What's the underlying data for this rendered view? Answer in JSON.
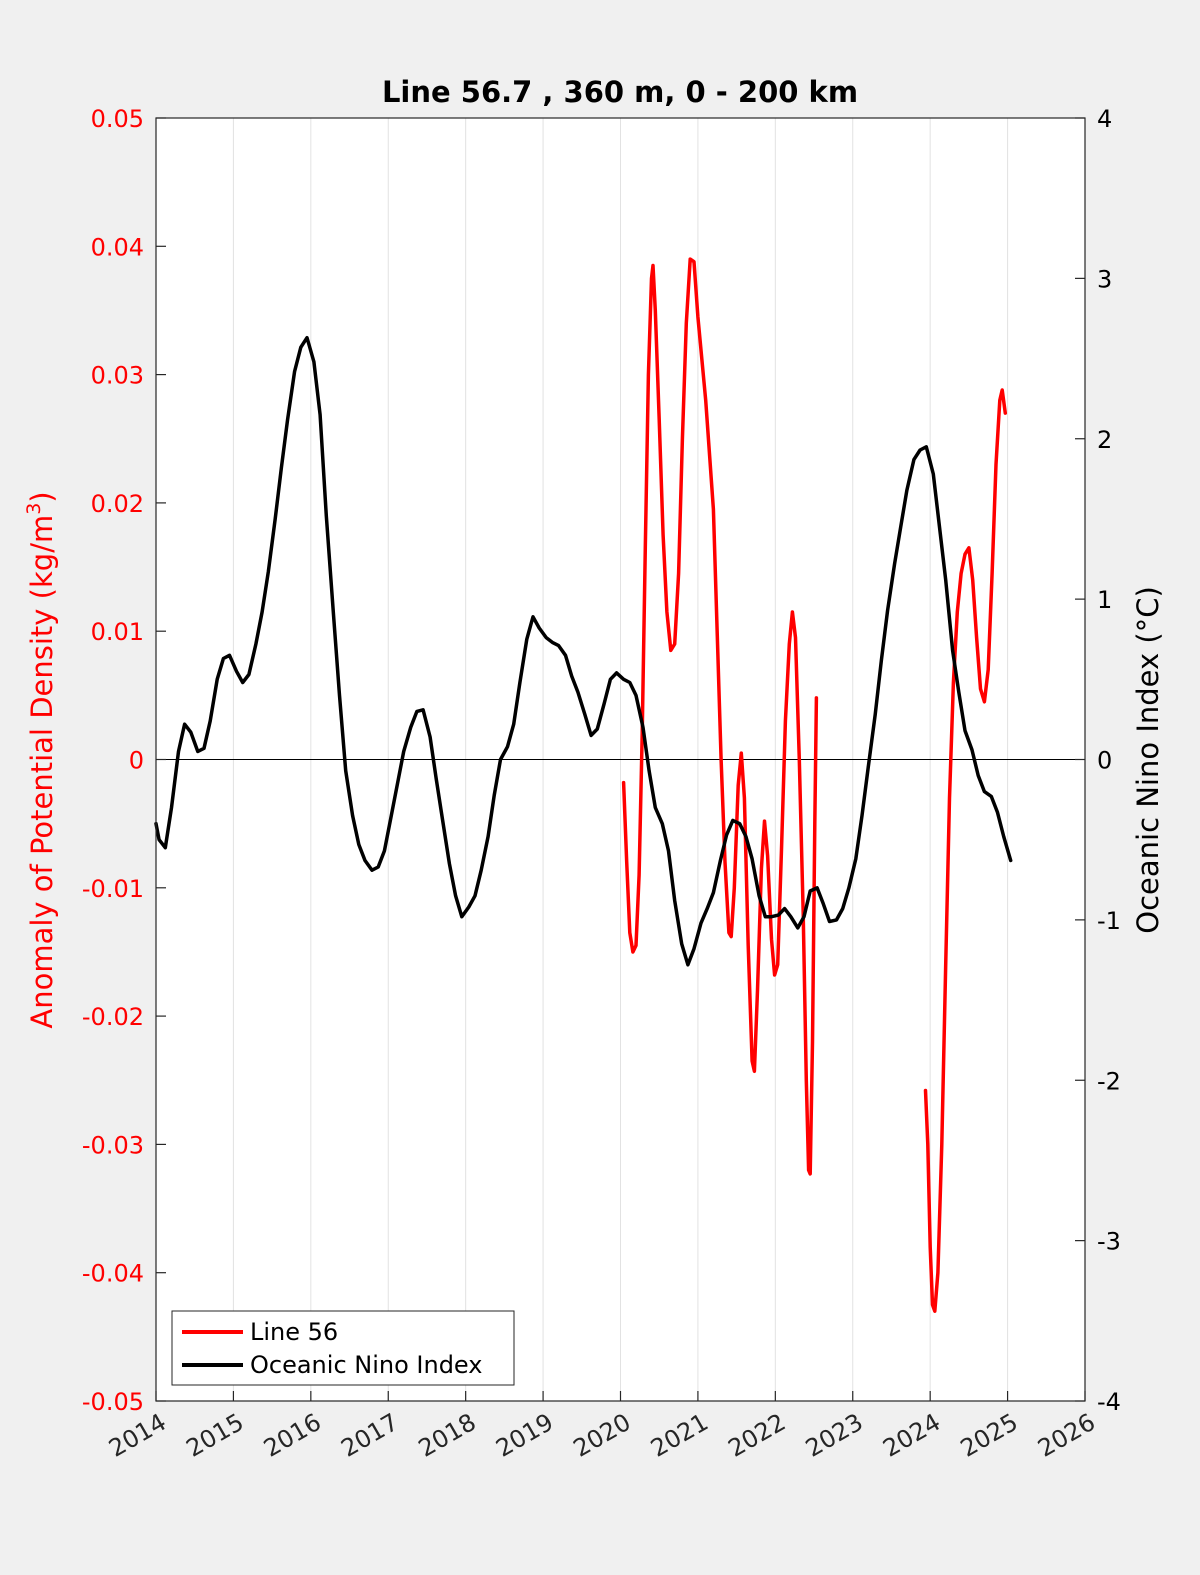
{
  "chart_data": {
    "type": "line",
    "title": "Line 56.7 , 360 m, 0 - 200 km",
    "ylabel_left": "Anomaly of Potential Density (kg/m",
    "ylabel_left_sup": "3",
    "ylabel_left_close": ")",
    "ylabel_right": "Oceanic Nino Index (°C)",
    "xlim": [
      2014,
      2026
    ],
    "ylim_left": [
      -0.05,
      0.05
    ],
    "ylim_right": [
      -4,
      4
    ],
    "x_ticks": [
      "2014",
      "2015",
      "2016",
      "2017",
      "2018",
      "2019",
      "2020",
      "2021",
      "2022",
      "2023",
      "2024",
      "2025",
      "2026"
    ],
    "y_left_ticks": [
      "0.05",
      "0.04",
      "0.03",
      "0.02",
      "0.01",
      "0",
      "-0.01",
      "-0.02",
      "-0.03",
      "-0.04",
      "-0.05"
    ],
    "y_right_ticks": [
      "4",
      "3",
      "2",
      "1",
      "0",
      "-1",
      "-2",
      "-3",
      "-4"
    ],
    "grid": "vertical",
    "zero_line": true,
    "legend_position": "bottom-left",
    "colors": {
      "left_axis": "#ff0000",
      "line56": "#ff0000",
      "oni": "#000000"
    },
    "series": [
      {
        "name": "Line 56",
        "axis": "left",
        "segments": [
          [
            [
              2020.04,
              -0.0018
            ],
            [
              2020.08,
              -0.008
            ],
            [
              2020.12,
              -0.0135
            ],
            [
              2020.16,
              -0.015
            ],
            [
              2020.2,
              -0.0145
            ],
            [
              2020.24,
              -0.009
            ],
            [
              2020.28,
              0.002
            ],
            [
              2020.32,
              0.0165
            ],
            [
              2020.36,
              0.03
            ],
            [
              2020.4,
              0.0375
            ],
            [
              2020.42,
              0.0385
            ],
            [
              2020.45,
              0.035
            ],
            [
              2020.5,
              0.0265
            ],
            [
              2020.55,
              0.0175
            ],
            [
              2020.6,
              0.0115
            ],
            [
              2020.65,
              0.0085
            ],
            [
              2020.7,
              0.009
            ],
            [
              2020.75,
              0.0145
            ],
            [
              2020.8,
              0.025
            ],
            [
              2020.85,
              0.034
            ],
            [
              2020.9,
              0.039
            ],
            [
              2020.95,
              0.0388
            ],
            [
              2021.0,
              0.0345
            ],
            [
              2021.1,
              0.028
            ],
            [
              2021.2,
              0.0195
            ],
            [
              2021.3,
              0.0
            ],
            [
              2021.35,
              -0.008
            ],
            [
              2021.4,
              -0.0135
            ],
            [
              2021.43,
              -0.0138
            ],
            [
              2021.47,
              -0.01
            ],
            [
              2021.52,
              -0.002
            ],
            [
              2021.56,
              0.0005
            ],
            [
              2021.6,
              -0.003
            ],
            [
              2021.65,
              -0.0145
            ],
            [
              2021.7,
              -0.0235
            ],
            [
              2021.73,
              -0.0243
            ],
            [
              2021.77,
              -0.018
            ],
            [
              2021.82,
              -0.0085
            ],
            [
              2021.86,
              -0.0048
            ],
            [
              2021.9,
              -0.0075
            ],
            [
              2021.95,
              -0.014
            ],
            [
              2021.99,
              -0.0168
            ],
            [
              2022.03,
              -0.016
            ],
            [
              2022.08,
              -0.007
            ],
            [
              2022.13,
              0.003
            ],
            [
              2022.18,
              0.009
            ],
            [
              2022.22,
              0.0115
            ],
            [
              2022.26,
              0.0095
            ],
            [
              2022.31,
              0.0
            ],
            [
              2022.36,
              -0.012
            ],
            [
              2022.4,
              -0.025
            ],
            [
              2022.43,
              -0.032
            ],
            [
              2022.45,
              -0.0323
            ],
            [
              2022.48,
              -0.022
            ],
            [
              2022.51,
              -0.005
            ],
            [
              2022.53,
              0.0048
            ]
          ],
          [
            [
              2023.94,
              -0.0258
            ],
            [
              2023.97,
              -0.03
            ],
            [
              2024.0,
              -0.038
            ],
            [
              2024.03,
              -0.0425
            ],
            [
              2024.06,
              -0.043
            ],
            [
              2024.1,
              -0.04
            ],
            [
              2024.15,
              -0.03
            ],
            [
              2024.2,
              -0.016
            ],
            [
              2024.25,
              -0.003
            ],
            [
              2024.3,
              0.006
            ],
            [
              2024.35,
              0.0115
            ],
            [
              2024.4,
              0.0145
            ],
            [
              2024.45,
              0.016
            ],
            [
              2024.5,
              0.0165
            ],
            [
              2024.55,
              0.014
            ],
            [
              2024.6,
              0.0095
            ],
            [
              2024.65,
              0.0055
            ],
            [
              2024.7,
              0.0045
            ],
            [
              2024.75,
              0.007
            ],
            [
              2024.8,
              0.0145
            ],
            [
              2024.85,
              0.023
            ],
            [
              2024.9,
              0.028
            ],
            [
              2024.93,
              0.0288
            ],
            [
              2024.97,
              0.027
            ]
          ]
        ]
      },
      {
        "name": "Oceanic Nino Index",
        "axis": "right",
        "points": [
          [
            2014.0,
            -0.4
          ],
          [
            2014.04,
            -0.5
          ],
          [
            2014.12,
            -0.55
          ],
          [
            2014.2,
            -0.3
          ],
          [
            2014.29,
            0.05
          ],
          [
            2014.37,
            0.22
          ],
          [
            2014.45,
            0.17
          ],
          [
            2014.54,
            0.05
          ],
          [
            2014.62,
            0.07
          ],
          [
            2014.7,
            0.24
          ],
          [
            2014.79,
            0.5
          ],
          [
            2014.87,
            0.63
          ],
          [
            2014.95,
            0.65
          ],
          [
            2015.04,
            0.55
          ],
          [
            2015.12,
            0.48
          ],
          [
            2015.2,
            0.53
          ],
          [
            2015.29,
            0.72
          ],
          [
            2015.37,
            0.92
          ],
          [
            2015.45,
            1.17
          ],
          [
            2015.54,
            1.5
          ],
          [
            2015.62,
            1.82
          ],
          [
            2015.7,
            2.12
          ],
          [
            2015.79,
            2.42
          ],
          [
            2015.87,
            2.57
          ],
          [
            2015.95,
            2.63
          ],
          [
            2016.04,
            2.48
          ],
          [
            2016.12,
            2.15
          ],
          [
            2016.2,
            1.52
          ],
          [
            2016.29,
            0.92
          ],
          [
            2016.37,
            0.4
          ],
          [
            2016.45,
            -0.07
          ],
          [
            2016.54,
            -0.35
          ],
          [
            2016.62,
            -0.53
          ],
          [
            2016.7,
            -0.63
          ],
          [
            2016.79,
            -0.69
          ],
          [
            2016.87,
            -0.67
          ],
          [
            2016.95,
            -0.57
          ],
          [
            2017.04,
            -0.35
          ],
          [
            2017.12,
            -0.15
          ],
          [
            2017.2,
            0.05
          ],
          [
            2017.29,
            0.2
          ],
          [
            2017.37,
            0.3
          ],
          [
            2017.45,
            0.31
          ],
          [
            2017.54,
            0.14
          ],
          [
            2017.62,
            -0.12
          ],
          [
            2017.7,
            -0.37
          ],
          [
            2017.79,
            -0.65
          ],
          [
            2017.87,
            -0.85
          ],
          [
            2017.95,
            -0.98
          ],
          [
            2018.04,
            -0.92
          ],
          [
            2018.12,
            -0.85
          ],
          [
            2018.2,
            -0.69
          ],
          [
            2018.29,
            -0.48
          ],
          [
            2018.37,
            -0.22
          ],
          [
            2018.45,
            0.0
          ],
          [
            2018.54,
            0.08
          ],
          [
            2018.62,
            0.22
          ],
          [
            2018.7,
            0.48
          ],
          [
            2018.79,
            0.75
          ],
          [
            2018.87,
            0.89
          ],
          [
            2018.95,
            0.82
          ],
          [
            2019.04,
            0.76
          ],
          [
            2019.12,
            0.73
          ],
          [
            2019.2,
            0.71
          ],
          [
            2019.29,
            0.65
          ],
          [
            2019.37,
            0.52
          ],
          [
            2019.45,
            0.42
          ],
          [
            2019.54,
            0.28
          ],
          [
            2019.62,
            0.15
          ],
          [
            2019.7,
            0.19
          ],
          [
            2019.79,
            0.35
          ],
          [
            2019.87,
            0.5
          ],
          [
            2019.95,
            0.54
          ],
          [
            2020.04,
            0.5
          ],
          [
            2020.12,
            0.48
          ],
          [
            2020.2,
            0.4
          ],
          [
            2020.29,
            0.2
          ],
          [
            2020.37,
            -0.07
          ],
          [
            2020.45,
            -0.3
          ],
          [
            2020.54,
            -0.4
          ],
          [
            2020.62,
            -0.57
          ],
          [
            2020.7,
            -0.88
          ],
          [
            2020.79,
            -1.15
          ],
          [
            2020.87,
            -1.28
          ],
          [
            2020.95,
            -1.18
          ],
          [
            2021.04,
            -1.02
          ],
          [
            2021.12,
            -0.93
          ],
          [
            2021.2,
            -0.83
          ],
          [
            2021.29,
            -0.63
          ],
          [
            2021.37,
            -0.47
          ],
          [
            2021.45,
            -0.38
          ],
          [
            2021.54,
            -0.4
          ],
          [
            2021.62,
            -0.48
          ],
          [
            2021.7,
            -0.62
          ],
          [
            2021.79,
            -0.85
          ],
          [
            2021.87,
            -0.98
          ],
          [
            2021.95,
            -0.98
          ],
          [
            2022.04,
            -0.97
          ],
          [
            2022.12,
            -0.93
          ],
          [
            2022.2,
            -0.98
          ],
          [
            2022.29,
            -1.05
          ],
          [
            2022.37,
            -0.98
          ],
          [
            2022.45,
            -0.82
          ],
          [
            2022.54,
            -0.8
          ],
          [
            2022.62,
            -0.9
          ],
          [
            2022.7,
            -1.01
          ],
          [
            2022.79,
            -1.0
          ],
          [
            2022.87,
            -0.93
          ],
          [
            2022.95,
            -0.8
          ],
          [
            2023.04,
            -0.62
          ],
          [
            2023.12,
            -0.35
          ],
          [
            2023.2,
            -0.05
          ],
          [
            2023.29,
            0.28
          ],
          [
            2023.37,
            0.62
          ],
          [
            2023.45,
            0.93
          ],
          [
            2023.54,
            1.22
          ],
          [
            2023.62,
            1.45
          ],
          [
            2023.7,
            1.68
          ],
          [
            2023.79,
            1.87
          ],
          [
            2023.87,
            1.93
          ],
          [
            2023.95,
            1.95
          ],
          [
            2024.04,
            1.78
          ],
          [
            2024.12,
            1.45
          ],
          [
            2024.2,
            1.12
          ],
          [
            2024.29,
            0.68
          ],
          [
            2024.37,
            0.42
          ],
          [
            2024.45,
            0.18
          ],
          [
            2024.54,
            0.06
          ],
          [
            2024.62,
            -0.1
          ],
          [
            2024.7,
            -0.2
          ],
          [
            2024.79,
            -0.23
          ],
          [
            2024.87,
            -0.33
          ],
          [
            2024.95,
            -0.48
          ],
          [
            2025.04,
            -0.63
          ]
        ]
      }
    ]
  }
}
